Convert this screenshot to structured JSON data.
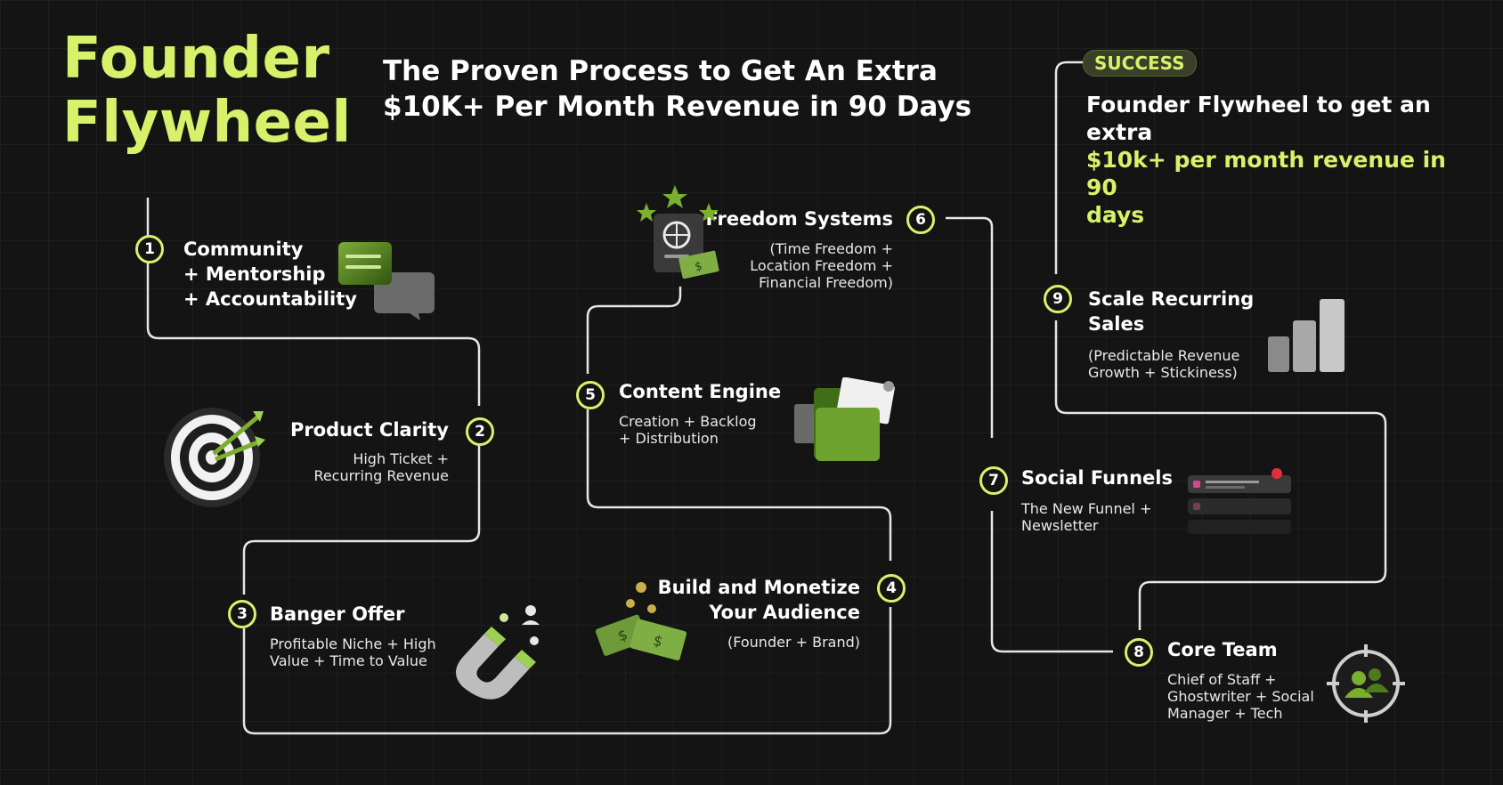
{
  "header": {
    "title_line1": "Founder",
    "title_line2": "Flywheel",
    "subtitle_line1": "The Proven Process to Get An Extra",
    "subtitle_line2": "$10K+ Per Month Revenue in 90 Days"
  },
  "success": {
    "badge": "SUCCESS",
    "line1": "Founder Flywheel to get an extra",
    "line2": "$10k+ per month revenue in 90",
    "line3": "days"
  },
  "steps": [
    {
      "num": "1",
      "title_lines": [
        "Community",
        "+ Mentorship",
        "+ Accountability"
      ],
      "desc_lines": [],
      "icon": "chat-bubbles-icon"
    },
    {
      "num": "2",
      "title_lines": [
        "Product Clarity"
      ],
      "desc_lines": [
        "High Ticket +",
        "Recurring Revenue"
      ],
      "icon": "target-icon"
    },
    {
      "num": "3",
      "title_lines": [
        "Banger Offer"
      ],
      "desc_lines": [
        "Profitable Niche + High",
        "Value + Time to Value"
      ],
      "icon": "magnet-icon"
    },
    {
      "num": "4",
      "title_lines": [
        "Build and Monetize",
        "Your Audience"
      ],
      "desc_lines": [
        "(Founder + Brand)"
      ],
      "icon": "money-icon"
    },
    {
      "num": "5",
      "title_lines": [
        "Content Engine"
      ],
      "desc_lines": [
        "Creation + Backlog",
        "+ Distribution"
      ],
      "icon": "folder-icon"
    },
    {
      "num": "6",
      "title_lines": [
        "Freedom Systems"
      ],
      "desc_lines": [
        "(Time Freedom +",
        "Location Freedom +",
        "Financial Freedom)"
      ],
      "icon": "passport-icon"
    },
    {
      "num": "7",
      "title_lines": [
        "Social Funnels"
      ],
      "desc_lines": [
        "The New Funnel +",
        "Newsletter"
      ],
      "icon": "notifications-icon"
    },
    {
      "num": "8",
      "title_lines": [
        "Core Team"
      ],
      "desc_lines": [
        "Chief of Staff +",
        "Ghostwriter + Social",
        "Manager + Tech"
      ],
      "icon": "team-target-icon"
    },
    {
      "num": "9",
      "title_lines": [
        "Scale Recurring",
        "Sales"
      ],
      "desc_lines": [
        "(Predictable Revenue",
        "Growth + Stickiness)"
      ],
      "icon": "bar-growth-icon"
    }
  ],
  "colors": {
    "accent": "#d7f26a",
    "background": "#141414",
    "line": "#e6e6e6"
  }
}
